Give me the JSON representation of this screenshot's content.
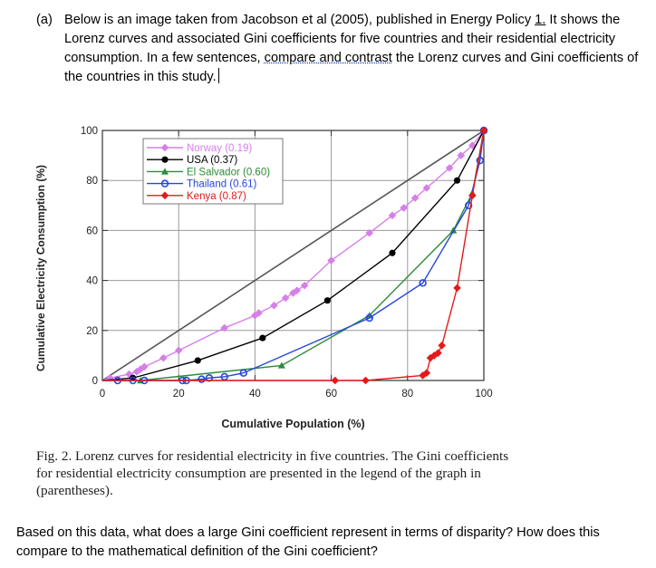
{
  "question": {
    "label": "(a)",
    "text_1": "Below is an image taken from Jacobson et al (2005), published in Energy Policy ",
    "ref": "1.",
    "text_2": " It shows the Lorenz curves and associated Gini coefficients for five countries and their residential electricity consumption. In a few sentences, ",
    "emphasis": "compare and contrast",
    "text_3": " the Lorenz curves and Gini coefficients of the countries in this study."
  },
  "caption": "Fig. 2.  Lorenz curves for residential electricity in five countries. The Gini coefficients for residential electricity consumption are presented in the legend of the graph in (parentheses).",
  "followup": "Based on this data, what does a large Gini coefficient represent in terms of disparity? How does this compare to the mathematical definition of the Gini coefficient?",
  "chart_data": {
    "type": "line",
    "xlabel": "Cumulative Population (%)",
    "ylabel": "Cumulative Electricity Consumption (%)",
    "xlim": [
      0,
      100
    ],
    "ylim": [
      0,
      100
    ],
    "x_ticks": [
      "0",
      "20",
      "40",
      "60",
      "80",
      "100"
    ],
    "y_ticks": [
      "0",
      "20",
      "40",
      "60",
      "80",
      "100"
    ],
    "grid": true,
    "legend_position": "top-left",
    "equality_line": true,
    "series": [
      {
        "name": "Norway (0.19)",
        "color": "#d77fe8",
        "marker": "diamond",
        "x": [
          0,
          2,
          7,
          9,
          10,
          11,
          16,
          20,
          32,
          40,
          41,
          45,
          48,
          50,
          51,
          53,
          60,
          70,
          76,
          79,
          82,
          85,
          91,
          94,
          97,
          100
        ],
        "y": [
          0,
          1,
          2.5,
          3.5,
          4.5,
          5.5,
          9,
          12,
          21,
          26,
          27,
          30,
          33,
          35,
          36,
          38,
          48,
          59,
          66,
          69,
          73,
          77,
          85,
          90,
          94,
          100
        ]
      },
      {
        "name": "USA (0.37)",
        "color": "#000000",
        "marker": "circle",
        "x": [
          0,
          8,
          25,
          42,
          59,
          76,
          93,
          100
        ],
        "y": [
          0,
          1,
          8,
          17,
          32,
          51,
          80,
          100
        ]
      },
      {
        "name": "El Salvador (0.60)",
        "color": "#2e8b3a",
        "marker": "triangle",
        "x": [
          0,
          10,
          47,
          70,
          92,
          97,
          100
        ],
        "y": [
          0,
          0,
          6,
          26,
          60,
          75,
          100
        ]
      },
      {
        "name": "Thailand (0.61)",
        "color": "#2747e0",
        "marker": "circle-open",
        "x": [
          0,
          4,
          8,
          11,
          21,
          22,
          26,
          28,
          32,
          37,
          70,
          84,
          96,
          99,
          100
        ],
        "y": [
          0,
          0,
          0,
          0,
          0,
          0,
          0.5,
          1,
          1.5,
          3,
          25,
          39,
          70,
          88,
          100
        ]
      },
      {
        "name": "Kenya (0.87)",
        "color": "#e41a1a",
        "marker": "diamond",
        "x": [
          0,
          61,
          69,
          84,
          85,
          86,
          87,
          88,
          89,
          93,
          97,
          100
        ],
        "y": [
          0,
          0,
          0,
          2,
          3,
          9,
          10,
          11,
          14,
          37,
          74,
          100
        ]
      }
    ]
  }
}
